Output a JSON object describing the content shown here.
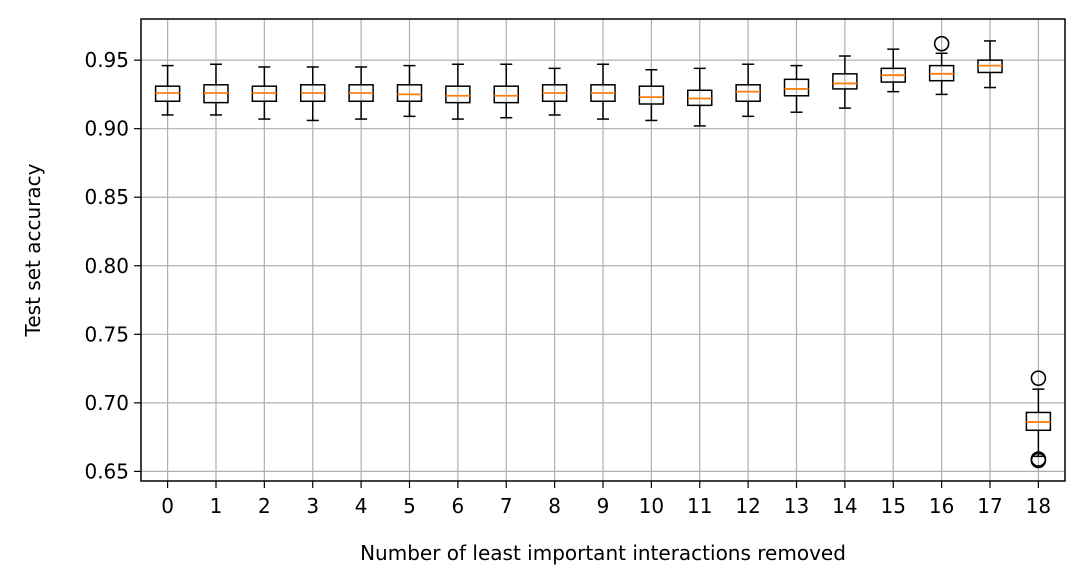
{
  "chart_data": {
    "type": "boxplot",
    "xlabel": "Number of least important interactions removed",
    "ylabel": "Test set accuracy",
    "ylim": [
      0.643,
      0.98
    ],
    "grid": true,
    "categories": [
      "0",
      "1",
      "2",
      "3",
      "4",
      "5",
      "6",
      "7",
      "8",
      "9",
      "10",
      "11",
      "12",
      "13",
      "14",
      "15",
      "16",
      "17",
      "18"
    ],
    "yticks": [
      0.65,
      0.7,
      0.75,
      0.8,
      0.85,
      0.9,
      0.95
    ],
    "ytick_labels": [
      "0.65",
      "0.70",
      "0.75",
      "0.80",
      "0.85",
      "0.90",
      "0.95"
    ],
    "boxes": [
      {
        "whisker_low": 0.91,
        "q1": 0.92,
        "median": 0.926,
        "q3": 0.931,
        "whisker_high": 0.946,
        "fliers": []
      },
      {
        "whisker_low": 0.91,
        "q1": 0.919,
        "median": 0.926,
        "q3": 0.932,
        "whisker_high": 0.947,
        "fliers": []
      },
      {
        "whisker_low": 0.907,
        "q1": 0.92,
        "median": 0.926,
        "q3": 0.931,
        "whisker_high": 0.945,
        "fliers": []
      },
      {
        "whisker_low": 0.906,
        "q1": 0.92,
        "median": 0.926,
        "q3": 0.932,
        "whisker_high": 0.945,
        "fliers": []
      },
      {
        "whisker_low": 0.907,
        "q1": 0.92,
        "median": 0.926,
        "q3": 0.932,
        "whisker_high": 0.945,
        "fliers": []
      },
      {
        "whisker_low": 0.909,
        "q1": 0.92,
        "median": 0.925,
        "q3": 0.932,
        "whisker_high": 0.946,
        "fliers": []
      },
      {
        "whisker_low": 0.907,
        "q1": 0.919,
        "median": 0.924,
        "q3": 0.931,
        "whisker_high": 0.947,
        "fliers": []
      },
      {
        "whisker_low": 0.908,
        "q1": 0.919,
        "median": 0.924,
        "q3": 0.931,
        "whisker_high": 0.947,
        "fliers": []
      },
      {
        "whisker_low": 0.91,
        "q1": 0.92,
        "median": 0.926,
        "q3": 0.932,
        "whisker_high": 0.944,
        "fliers": []
      },
      {
        "whisker_low": 0.907,
        "q1": 0.92,
        "median": 0.926,
        "q3": 0.932,
        "whisker_high": 0.947,
        "fliers": []
      },
      {
        "whisker_low": 0.906,
        "q1": 0.918,
        "median": 0.923,
        "q3": 0.931,
        "whisker_high": 0.943,
        "fliers": []
      },
      {
        "whisker_low": 0.902,
        "q1": 0.917,
        "median": 0.922,
        "q3": 0.928,
        "whisker_high": 0.944,
        "fliers": []
      },
      {
        "whisker_low": 0.909,
        "q1": 0.92,
        "median": 0.927,
        "q3": 0.932,
        "whisker_high": 0.947,
        "fliers": []
      },
      {
        "whisker_low": 0.912,
        "q1": 0.924,
        "median": 0.929,
        "q3": 0.936,
        "whisker_high": 0.946,
        "fliers": []
      },
      {
        "whisker_low": 0.915,
        "q1": 0.929,
        "median": 0.933,
        "q3": 0.94,
        "whisker_high": 0.953,
        "fliers": []
      },
      {
        "whisker_low": 0.927,
        "q1": 0.934,
        "median": 0.939,
        "q3": 0.944,
        "whisker_high": 0.958,
        "fliers": []
      },
      {
        "whisker_low": 0.925,
        "q1": 0.935,
        "median": 0.94,
        "q3": 0.946,
        "whisker_high": 0.955,
        "fliers": [
          0.962
        ]
      },
      {
        "whisker_low": 0.93,
        "q1": 0.941,
        "median": 0.946,
        "q3": 0.95,
        "whisker_high": 0.964,
        "fliers": []
      },
      {
        "whisker_low": 0.661,
        "q1": 0.68,
        "median": 0.686,
        "q3": 0.693,
        "whisker_high": 0.71,
        "fliers": [
          0.718,
          0.659,
          0.658
        ]
      }
    ],
    "colors": {
      "box": "#000000",
      "median": "#ff7f0e",
      "grid": "#b0b0b0"
    }
  }
}
